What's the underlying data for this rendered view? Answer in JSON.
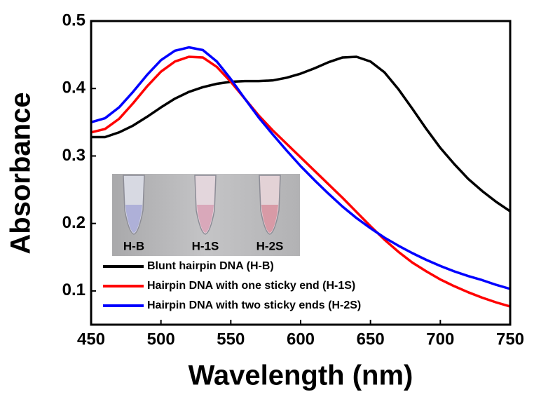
{
  "chart_data": {
    "type": "line",
    "x_label": "Wavelength (nm)",
    "y_label": "Absorbance",
    "x": [
      450,
      460,
      470,
      480,
      490,
      500,
      510,
      520,
      530,
      540,
      550,
      560,
      570,
      580,
      590,
      600,
      610,
      620,
      630,
      640,
      650,
      660,
      670,
      680,
      690,
      700,
      710,
      720,
      730,
      740,
      750
    ],
    "series": [
      {
        "name": "Blunt hairpin DNA (H-B)",
        "color": "#000000",
        "values": [
          0.328,
          0.328,
          0.335,
          0.345,
          0.358,
          0.372,
          0.385,
          0.395,
          0.402,
          0.407,
          0.41,
          0.411,
          0.411,
          0.412,
          0.416,
          0.422,
          0.43,
          0.439,
          0.446,
          0.447,
          0.44,
          0.424,
          0.399,
          0.37,
          0.34,
          0.312,
          0.288,
          0.266,
          0.248,
          0.232,
          0.218
        ]
      },
      {
        "name": "Hairpin DNA with one sticky end (H-1S)",
        "color": "#ff0000",
        "values": [
          0.335,
          0.34,
          0.355,
          0.378,
          0.403,
          0.425,
          0.44,
          0.447,
          0.446,
          0.432,
          0.41,
          0.385,
          0.36,
          0.338,
          0.318,
          0.298,
          0.278,
          0.258,
          0.238,
          0.217,
          0.196,
          0.176,
          0.158,
          0.142,
          0.129,
          0.117,
          0.107,
          0.098,
          0.09,
          0.083,
          0.077
        ]
      },
      {
        "name": "Hairpin DNA with two sticky ends (H-2S)",
        "color": "#0000ff",
        "values": [
          0.35,
          0.356,
          0.372,
          0.395,
          0.42,
          0.442,
          0.456,
          0.461,
          0.457,
          0.44,
          0.414,
          0.385,
          0.357,
          0.332,
          0.308,
          0.285,
          0.264,
          0.244,
          0.225,
          0.208,
          0.193,
          0.179,
          0.167,
          0.156,
          0.146,
          0.137,
          0.129,
          0.122,
          0.116,
          0.109,
          0.103
        ]
      }
    ],
    "xlim": [
      450,
      750
    ],
    "xticks": [
      450,
      500,
      550,
      600,
      650,
      700,
      750
    ],
    "ylim": [
      0.05,
      0.5
    ],
    "yticks": [
      0.1,
      0.2,
      0.3,
      0.4,
      0.5
    ],
    "legend": "lower left",
    "inset_labels": [
      "H-B",
      "H-1S",
      "H-2S"
    ]
  }
}
